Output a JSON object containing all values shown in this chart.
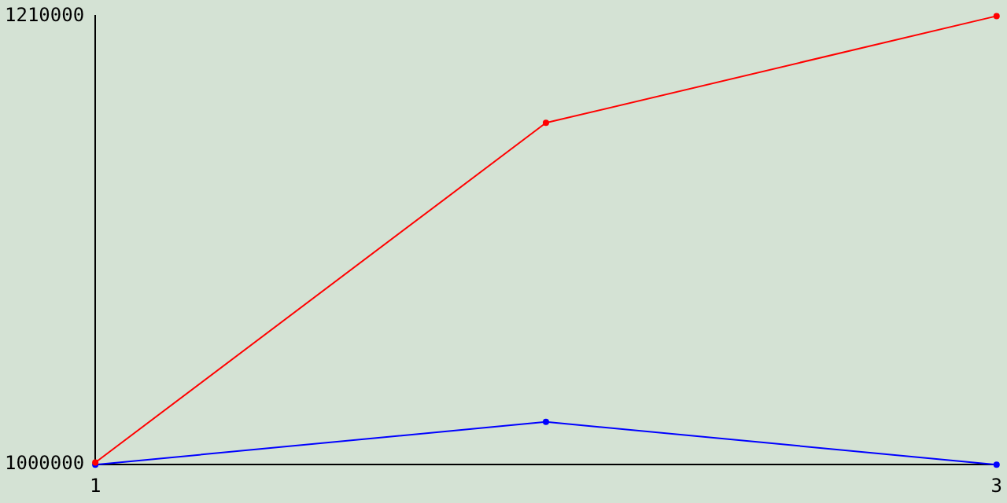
{
  "chart_data": {
    "type": "line",
    "x": [
      1,
      2,
      3
    ],
    "xlim": [
      1,
      3
    ],
    "xticks": [
      1,
      3
    ],
    "ylim": [
      1000000,
      1210000
    ],
    "yticks": [
      1000000,
      1210000
    ],
    "grid": false,
    "legend": false,
    "marker": "circle",
    "line_style": "solid",
    "series": [
      {
        "color": "#ff0000",
        "values": [
          1001000,
          1160000,
          1210000
        ]
      },
      {
        "color": "#0000ff",
        "values": [
          1000000,
          1020000,
          1000000
        ]
      }
    ]
  }
}
